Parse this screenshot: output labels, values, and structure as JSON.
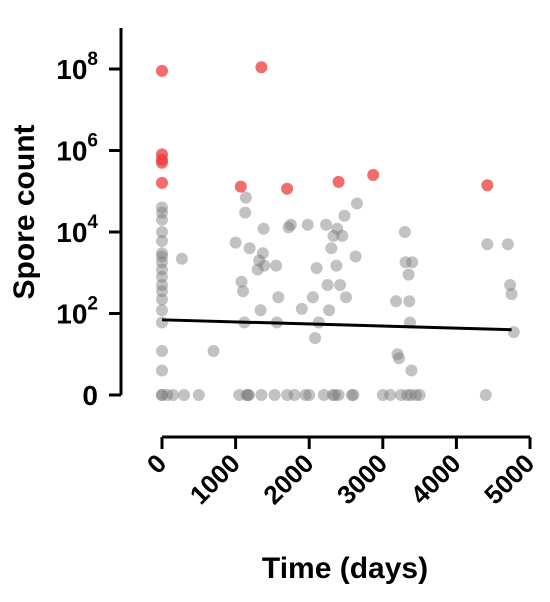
{
  "chart_data": {
    "type": "scatter",
    "title": "",
    "xlabel": "Time (days)",
    "ylabel": "Spore count",
    "xlim": [
      -250,
      5000
    ],
    "x_ticks": [
      0,
      1000,
      2000,
      3000,
      4000,
      5000
    ],
    "x_tick_labels": [
      "0",
      "1000",
      "2000",
      "3000",
      "4000",
      "5000"
    ],
    "y_scale": "log",
    "y_ticks": [
      1,
      100,
      10000,
      1000000,
      100000000
    ],
    "y_tick_labels": [
      {
        "base": "0",
        "exp": ""
      },
      {
        "base": "10",
        "exp": "2"
      },
      {
        "base": "10",
        "exp": "4"
      },
      {
        "base": "10",
        "exp": "6"
      },
      {
        "base": "10",
        "exp": "8"
      }
    ],
    "grid": false,
    "colors": {
      "gray_points": "#777777",
      "red_points": "#ee3b3b",
      "trend_line": "#000000"
    },
    "series": [
      {
        "color": "#ee3b3b",
        "points": [
          [
            0,
            90000000
          ],
          [
            0,
            800000
          ],
          [
            0,
            600000
          ],
          [
            0,
            500000
          ],
          [
            0,
            160000
          ],
          [
            1070,
            130000
          ],
          [
            1350,
            110000000
          ],
          [
            1700,
            115000
          ],
          [
            2400,
            170000
          ],
          [
            2870,
            250000
          ],
          [
            4420,
            140000
          ]
        ]
      },
      {
        "color": "#777777",
        "points": [
          [
            0,
            40000
          ],
          [
            0,
            30000
          ],
          [
            0,
            20000
          ],
          [
            0,
            10000
          ],
          [
            0,
            6000
          ],
          [
            0,
            3000
          ],
          [
            0,
            2500
          ],
          [
            0,
            1800
          ],
          [
            0,
            1200
          ],
          [
            0,
            800
          ],
          [
            0,
            500
          ],
          [
            0,
            350
          ],
          [
            0,
            220
          ],
          [
            0,
            120
          ],
          [
            0,
            60
          ],
          [
            0,
            12
          ],
          [
            0,
            4
          ],
          [
            0,
            1
          ],
          [
            0,
            1
          ],
          [
            70,
            1
          ],
          [
            150,
            1
          ],
          [
            270,
            2200
          ],
          [
            300,
            1
          ],
          [
            500,
            1
          ],
          [
            700,
            12
          ],
          [
            1000,
            5500
          ],
          [
            1050,
            1
          ],
          [
            1080,
            600
          ],
          [
            1100,
            350
          ],
          [
            1120,
            60
          ],
          [
            1130,
            30000
          ],
          [
            1140,
            70000
          ],
          [
            1150,
            1
          ],
          [
            1170,
            1
          ],
          [
            1180,
            1
          ],
          [
            1190,
            4000
          ],
          [
            1300,
            1200
          ],
          [
            1320,
            2000
          ],
          [
            1340,
            120
          ],
          [
            1350,
            1
          ],
          [
            1370,
            3000
          ],
          [
            1380,
            12000
          ],
          [
            1390,
            1500
          ],
          [
            1530,
            1
          ],
          [
            1550,
            1500
          ],
          [
            1560,
            60
          ],
          [
            1580,
            250
          ],
          [
            1700,
            1
          ],
          [
            1720,
            13000
          ],
          [
            1750,
            15000
          ],
          [
            1800,
            1
          ],
          [
            1900,
            130
          ],
          [
            1950,
            1
          ],
          [
            1980,
            15000
          ],
          [
            2000,
            1
          ],
          [
            2050,
            250
          ],
          [
            2080,
            25
          ],
          [
            2100,
            1300
          ],
          [
            2130,
            60
          ],
          [
            2200,
            1
          ],
          [
            2230,
            15000
          ],
          [
            2250,
            500
          ],
          [
            2270,
            120
          ],
          [
            2300,
            4000
          ],
          [
            2320,
            1
          ],
          [
            2330,
            8000
          ],
          [
            2350,
            1
          ],
          [
            2370,
            1500
          ],
          [
            2380,
            12000
          ],
          [
            2400,
            1
          ],
          [
            2420,
            500
          ],
          [
            2450,
            8000
          ],
          [
            2480,
            25000
          ],
          [
            2500,
            250
          ],
          [
            2580,
            1
          ],
          [
            2600,
            1
          ],
          [
            2630,
            2500
          ],
          [
            2650,
            50000
          ],
          [
            3000,
            1
          ],
          [
            3100,
            1
          ],
          [
            3180,
            200
          ],
          [
            3200,
            10
          ],
          [
            3220,
            8
          ],
          [
            3250,
            1
          ],
          [
            3300,
            10000
          ],
          [
            3310,
            1800
          ],
          [
            3330,
            1
          ],
          [
            3350,
            900
          ],
          [
            3360,
            200
          ],
          [
            3370,
            60
          ],
          [
            3380,
            1
          ],
          [
            3390,
            4
          ],
          [
            3400,
            1800
          ],
          [
            3450,
            1
          ],
          [
            3500,
            1
          ],
          [
            4400,
            1
          ],
          [
            4420,
            5000
          ],
          [
            4700,
            5000
          ],
          [
            4730,
            500
          ],
          [
            4750,
            300
          ],
          [
            4780,
            35
          ]
        ]
      }
    ],
    "trend_line": {
      "x": [
        0,
        4750
      ],
      "y": [
        70,
        40
      ]
    }
  }
}
